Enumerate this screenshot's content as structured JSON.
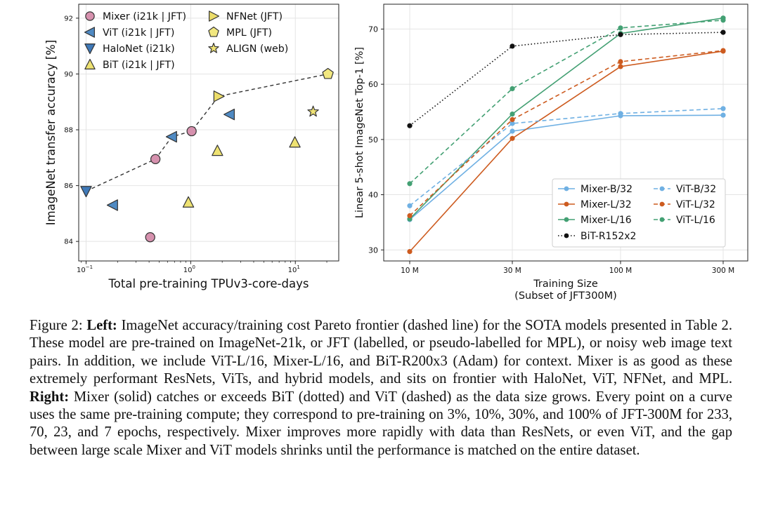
{
  "colors": {
    "mixer": "#d691ae",
    "vit": "#4f8ac3",
    "halonet": "#3f79b8",
    "bit": "#eee272",
    "nfnet": "#ecdd6a",
    "mpl": "#f2e880",
    "align": "#efe275",
    "line_mixer_b": "#6fb0e3",
    "line_mixer_l": "#cd5b1f",
    "line_mixer_l16": "#43a073",
    "line_bit": "#111111"
  },
  "chart_data": [
    {
      "type": "scatter",
      "xlabel": "Total pre-training TPUv3-core-days",
      "ylabel": "ImageNet transfer accuracy [%]",
      "xscale": "log",
      "xlim": [
        0.085,
        26
      ],
      "ylim": [
        83.3,
        92.5
      ],
      "xticks": [
        {
          "v": 0.1,
          "base": "10",
          "exp": "−1"
        },
        {
          "v": 1,
          "base": "10",
          "exp": "0"
        },
        {
          "v": 10,
          "base": "10",
          "exp": "1"
        }
      ],
      "yticks": [
        84,
        86,
        88,
        90,
        92
      ],
      "legend": [
        {
          "label": "Mixer (i21k | JFT)",
          "marker": "circle",
          "color": "mixer"
        },
        {
          "label": "ViT (i21k | JFT)",
          "marker": "tri-left",
          "color": "vit"
        },
        {
          "label": "HaloNet (i21k)",
          "marker": "tri-down",
          "color": "halonet"
        },
        {
          "label": "BiT (i21k | JFT)",
          "marker": "tri-up",
          "color": "bit"
        },
        {
          "label": "NFNet (JFT)",
          "marker": "tri-right",
          "color": "nfnet"
        },
        {
          "label": "MPL (JFT)",
          "marker": "pentagon",
          "color": "mpl"
        },
        {
          "label": "ALIGN (web)",
          "marker": "star",
          "color": "align"
        }
      ],
      "points": [
        {
          "model": "Mixer",
          "marker": "circle",
          "color": "mixer",
          "x": 0.46,
          "y": 86.95
        },
        {
          "model": "Mixer",
          "marker": "circle",
          "color": "mixer",
          "x": 1.02,
          "y": 87.95
        },
        {
          "model": "Mixer",
          "marker": "circle",
          "color": "mixer",
          "x": 0.41,
          "y": 84.15
        },
        {
          "model": "ViT",
          "marker": "tri-left",
          "color": "vit",
          "x": 0.66,
          "y": 87.75
        },
        {
          "model": "ViT",
          "marker": "tri-left",
          "color": "vit",
          "x": 2.35,
          "y": 88.55
        },
        {
          "model": "ViT",
          "marker": "tri-left",
          "color": "vit",
          "x": 0.18,
          "y": 85.3
        },
        {
          "model": "HaloNet",
          "marker": "tri-down",
          "color": "halonet",
          "x": 0.1,
          "y": 85.8
        },
        {
          "model": "BiT",
          "marker": "tri-up",
          "color": "bit",
          "x": 0.95,
          "y": 85.4
        },
        {
          "model": "BiT",
          "marker": "tri-up",
          "color": "bit",
          "x": 1.8,
          "y": 87.25
        },
        {
          "model": "BiT",
          "marker": "tri-up",
          "color": "bit",
          "x": 9.9,
          "y": 87.55
        },
        {
          "model": "NFNet",
          "marker": "tri-right",
          "color": "nfnet",
          "x": 1.85,
          "y": 89.2
        },
        {
          "model": "MPL",
          "marker": "pentagon",
          "color": "mpl",
          "x": 20.5,
          "y": 90.0
        },
        {
          "model": "ALIGN",
          "marker": "star",
          "color": "align",
          "x": 14.8,
          "y": 88.65
        }
      ],
      "frontier": [
        [
          0.1,
          85.8
        ],
        [
          0.46,
          86.95
        ],
        [
          0.66,
          87.75
        ],
        [
          1.02,
          87.95
        ],
        [
          1.85,
          89.2
        ],
        [
          20.5,
          90.0
        ]
      ]
    },
    {
      "type": "line",
      "xlabel": "Training Size",
      "xlabel2": "(Subset of JFT300M)",
      "ylabel": "Linear 5-shot ImageNet Top-1 [%]",
      "categories": [
        "10 M",
        "30 M",
        "100 M",
        "300 M"
      ],
      "yticks": [
        30,
        40,
        50,
        60,
        70
      ],
      "ylim": [
        28,
        74.5
      ],
      "series": [
        {
          "name": "Mixer-B/32",
          "color": "line_mixer_b",
          "style": "solid",
          "marker": "circle",
          "values": [
            35.5,
            51.5,
            54.3,
            54.4
          ]
        },
        {
          "name": "Mixer-L/32",
          "color": "line_mixer_l",
          "style": "solid",
          "marker": "circle",
          "values": [
            29.7,
            50.2,
            63.2,
            66.0
          ]
        },
        {
          "name": "Mixer-L/16",
          "color": "line_mixer_l16",
          "style": "solid",
          "marker": "circle",
          "values": [
            35.6,
            54.6,
            69.2,
            72.0
          ]
        },
        {
          "name": "BiT-R152x2",
          "color": "line_bit",
          "style": "dotted",
          "marker": "circle",
          "values": [
            52.5,
            66.9,
            69.0,
            69.4
          ]
        },
        {
          "name": "ViT-B/32",
          "color": "line_mixer_b",
          "style": "dashed",
          "marker": "circle",
          "values": [
            38.0,
            52.9,
            54.7,
            55.6
          ]
        },
        {
          "name": "ViT-L/32",
          "color": "line_mixer_l",
          "style": "dashed",
          "marker": "circle",
          "values": [
            36.2,
            53.6,
            64.1,
            66.1
          ]
        },
        {
          "name": "ViT-L/16",
          "color": "line_mixer_l16",
          "style": "dashed",
          "marker": "circle",
          "values": [
            42.0,
            59.2,
            70.2,
            71.6
          ]
        }
      ],
      "legend_order": [
        0,
        4,
        1,
        5,
        2,
        6,
        3
      ]
    }
  ],
  "caption": {
    "figure_label": "Figure 2: ",
    "left_label": "Left:",
    "text_left": " ImageNet accuracy/training cost Pareto frontier (dashed line) for the SOTA models presented in Table 2. These model are pre-trained on ImageNet-21k, or JFT (labelled, or pseudo-labelled for MPL), or noisy web image text pairs. In addition, we include ViT-L/16, Mixer-L/16, and BiT-R200x3 (Adam) for context. Mixer is as good as these extremely performant ResNets, ViTs, and hybrid models, and sits on frontier with HaloNet, ViT, NFNet, and MPL. ",
    "right_label": "Right:",
    "text_right": " Mixer (solid) catches or exceeds BiT (dotted) and ViT (dashed) as the data size grows. Every point on a curve uses the same pre-training compute; they correspond to pre-training on 3%, 10%, 30%, and 100% of JFT-300M for 233, 70, 23, and 7 epochs, respectively. Mixer improves more rapidly with data than ResNets, or even ViT, and the gap between large scale Mixer and ViT models shrinks until the performance is matched on the entire dataset."
  }
}
